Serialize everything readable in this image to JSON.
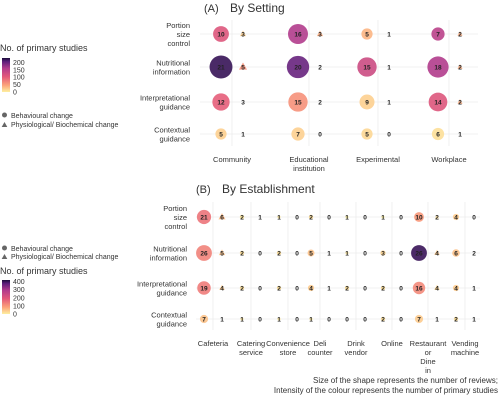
{
  "chart_data": [
    {
      "type": "scatter",
      "panel_letter": "(A)",
      "title": "By Setting",
      "rows": [
        "Portion size control",
        "Nutritional information",
        "Interpretational guidance",
        "Contextual guidance"
      ],
      "row_labels": [
        [
          "Portion",
          "size",
          "control"
        ],
        [
          "Nutritional",
          "information"
        ],
        [
          "Interpretational",
          "guidance"
        ],
        [
          "Contextual",
          "guidance"
        ]
      ],
      "columns": [
        "Community",
        "Educational institution",
        "Experimental",
        "Workplace"
      ],
      "column_labels": [
        [
          "Community"
        ],
        [
          "Educational",
          "institution"
        ],
        [
          "Experimental"
        ],
        [
          "Workplace"
        ]
      ],
      "behavioural_counts": [
        [
          10,
          16,
          5,
          7
        ],
        [
          21,
          20,
          15,
          18
        ],
        [
          12,
          15,
          9,
          14
        ],
        [
          5,
          7,
          5,
          6
        ]
      ],
      "behavioural_studies": [
        [
          110,
          160,
          35,
          150
        ],
        [
          220,
          200,
          130,
          160
        ],
        [
          100,
          60,
          20,
          110
        ],
        [
          20,
          20,
          15,
          10
        ]
      ],
      "physiological_counts": [
        [
          3,
          3,
          1,
          2
        ],
        [
          5,
          2,
          1,
          2
        ],
        [
          3,
          2,
          1,
          2
        ],
        [
          1,
          0,
          0,
          1
        ]
      ],
      "physiological_studies": [
        [
          20,
          40,
          0,
          40
        ],
        [
          60,
          0,
          0,
          40
        ],
        [
          0,
          0,
          0,
          40
        ],
        [
          0,
          0,
          0,
          0
        ]
      ]
    },
    {
      "type": "scatter",
      "panel_letter": "(B)",
      "title": "By Establishment",
      "rows": [
        "Portion size control",
        "Nutritional information",
        "Interpretational guidance",
        "Contextual guidance"
      ],
      "row_labels": [
        [
          "Portion",
          "size",
          "control"
        ],
        [
          "Nutritional",
          "information"
        ],
        [
          "Interpretational",
          "guidance"
        ],
        [
          "Contextual",
          "guidance"
        ]
      ],
      "columns": [
        "Cafeteria",
        "Catering service",
        "Convenience store",
        "Deli counter",
        "Drink vendor",
        "Online",
        "Restaurant or Dine in",
        "Vending machine"
      ],
      "column_labels": [
        [
          "Cafeteria"
        ],
        [
          "Catering",
          "service"
        ],
        [
          "Convenience",
          "store"
        ],
        [
          "Deli",
          "counter"
        ],
        [
          "Drink",
          "vendor"
        ],
        [
          "Online"
        ],
        [
          "Restaurant",
          "or",
          "Dine",
          "in"
        ],
        [
          "Vending",
          "machine"
        ]
      ],
      "behavioural_counts": [
        [
          21,
          2,
          1,
          2,
          1,
          1,
          10,
          4
        ],
        [
          26,
          2,
          2,
          5,
          1,
          3,
          26,
          6
        ],
        [
          19,
          2,
          2,
          4,
          2,
          2,
          16,
          4
        ],
        [
          7,
          1,
          1,
          1,
          0,
          2,
          7,
          2
        ]
      ],
      "behavioural_studies": [
        [
          150,
          10,
          10,
          20,
          0,
          0,
          100,
          40
        ],
        [
          130,
          20,
          20,
          50,
          10,
          30,
          400,
          50
        ],
        [
          140,
          20,
          20,
          40,
          20,
          20,
          120,
          40
        ],
        [
          50,
          10,
          10,
          10,
          0,
          20,
          40,
          20
        ]
      ],
      "physiological_counts": [
        [
          6,
          1,
          0,
          0,
          0,
          0,
          2,
          0
        ],
        [
          5,
          0,
          0,
          1,
          0,
          0,
          4,
          2
        ],
        [
          4,
          0,
          0,
          1,
          0,
          0,
          4,
          1
        ],
        [
          1,
          0,
          0,
          0,
          0,
          0,
          1,
          1
        ]
      ],
      "physiological_studies": [
        [
          60,
          0,
          0,
          0,
          0,
          0,
          20,
          0
        ],
        [
          50,
          0,
          0,
          0,
          0,
          0,
          40,
          0
        ],
        [
          40,
          0,
          0,
          0,
          0,
          0,
          30,
          0
        ],
        [
          0,
          0,
          0,
          0,
          0,
          0,
          0,
          0
        ]
      ]
    }
  ],
  "legends": {
    "a_color": {
      "title": "No. of primary studies",
      "ticks": [
        200,
        150,
        100,
        50,
        0
      ],
      "max": 230
    },
    "a_shape": {
      "items": [
        "Behavioural change",
        "Physiological/ Biochemical change"
      ]
    },
    "b_shape": {
      "items": [
        "Behavioural change",
        "Physiological/ Biochemical change"
      ]
    },
    "b_color": {
      "title": "No. of primary studies",
      "ticks": [
        400,
        300,
        200,
        100,
        0
      ],
      "max": 420
    }
  },
  "colors": {
    "max": "#3b0f70",
    "high": "#8c2981",
    "mid": "#de4968",
    "low": "#fe9f6d",
    "min": "#fcfdbf",
    "saturated": "#5a5a5a"
  },
  "caption": [
    "Size of the shape represents the number of reviews;",
    "Intensity of the colour represents the number of primary studies"
  ]
}
